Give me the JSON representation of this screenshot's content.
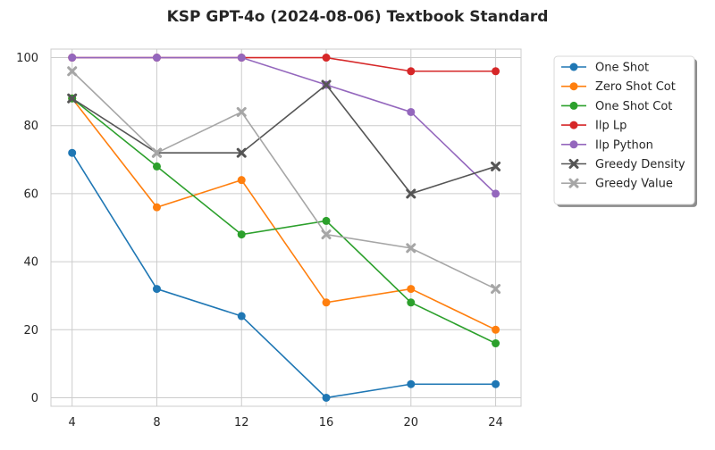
{
  "chart_data": {
    "type": "line",
    "title": "KSP GPT-4o (2024-08-06) Textbook Standard",
    "xlabel": "",
    "ylabel": "",
    "x": [
      4,
      8,
      12,
      16,
      20,
      24
    ],
    "xticks": [
      "4",
      "8",
      "12",
      "16",
      "20",
      "24"
    ],
    "yticks": [
      "0",
      "20",
      "40",
      "60",
      "80",
      "100"
    ],
    "xlim": [
      3.0,
      25.2
    ],
    "ylim": [
      -2.5,
      102.5
    ],
    "grid": true,
    "legend_position": "outside-right",
    "series": [
      {
        "name": "One Shot",
        "color": "#1f77b4",
        "marker": "circle",
        "values": [
          72,
          32,
          24,
          0,
          4,
          4
        ]
      },
      {
        "name": "Zero Shot Cot",
        "color": "#ff7f0e",
        "marker": "circle",
        "values": [
          88,
          56,
          64,
          28,
          32,
          20
        ]
      },
      {
        "name": "One Shot Cot",
        "color": "#2ca02c",
        "marker": "circle",
        "values": [
          88,
          68,
          48,
          52,
          28,
          16
        ]
      },
      {
        "name": "Ilp Lp",
        "color": "#d62728",
        "marker": "circle",
        "values": [
          100,
          100,
          100,
          100,
          96,
          96
        ]
      },
      {
        "name": "Ilp Python",
        "color": "#9467bd",
        "marker": "circle",
        "values": [
          100,
          100,
          100,
          92,
          84,
          60
        ]
      },
      {
        "name": "Greedy Density",
        "color": "#555555",
        "marker": "x",
        "values": [
          88,
          72,
          72,
          92,
          60,
          68
        ]
      },
      {
        "name": "Greedy Value",
        "color": "#a6a6a6",
        "marker": "x",
        "values": [
          96,
          72,
          84,
          48,
          44,
          32
        ]
      }
    ]
  }
}
